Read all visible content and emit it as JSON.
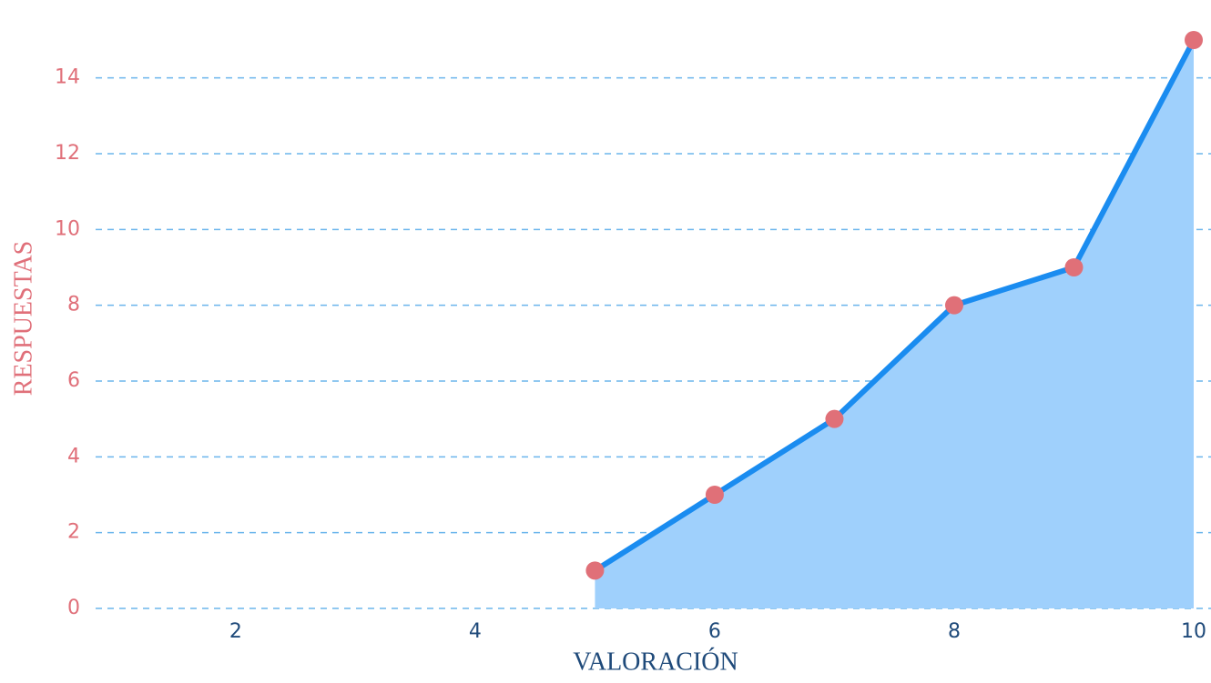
{
  "chart_data": {
    "type": "area",
    "x": [
      5,
      6,
      7,
      8,
      9,
      10
    ],
    "values": [
      1,
      3,
      5,
      8,
      9,
      15
    ],
    "xlabel": "VALORACIÓN",
    "ylabel": "RESPUESTAS",
    "xlim": [
      0.83,
      10
    ],
    "xticks": [
      2,
      4,
      6,
      8,
      10
    ],
    "ylim": [
      0,
      15
    ],
    "yticks": [
      0,
      2,
      4,
      6,
      8,
      10,
      12,
      14
    ],
    "grid": true,
    "line_color": "#1a8cf0",
    "fill_color": "#9fd0fc",
    "marker_color": "#e07078"
  }
}
